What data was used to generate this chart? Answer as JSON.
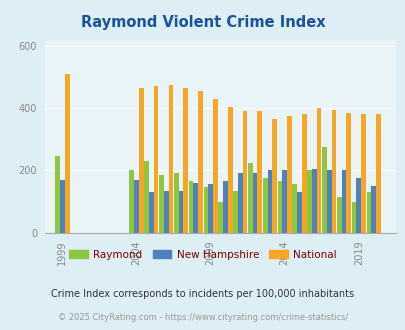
{
  "title": "Raymond Violent Crime Index",
  "title_color": "#1a52a0",
  "subtitle": "Crime Index corresponds to incidents per 100,000 inhabitants",
  "footer": "© 2025 CityRating.com - https://www.cityrating.com/crime-statistics/",
  "years": [
    1999,
    2001,
    2004,
    2005,
    2006,
    2007,
    2008,
    2009,
    2010,
    2011,
    2012,
    2013,
    2014,
    2015,
    2016,
    2017,
    2018,
    2019,
    2020
  ],
  "raymond": [
    245,
    0,
    200,
    230,
    185,
    190,
    165,
    148,
    100,
    135,
    225,
    175,
    165,
    155,
    200,
    275,
    115,
    100,
    130
  ],
  "new_hampshire": [
    170,
    0,
    170,
    130,
    135,
    135,
    160,
    155,
    165,
    190,
    190,
    200,
    200,
    130,
    205,
    200,
    200,
    175,
    150
  ],
  "national": [
    510,
    0,
    465,
    470,
    475,
    465,
    455,
    430,
    405,
    390,
    390,
    365,
    375,
    380,
    400,
    395,
    385,
    380,
    380
  ],
  "raymond_color": "#8dc63f",
  "nh_color": "#4f81bd",
  "national_color": "#f5a623",
  "bg_color": "#ddeef4",
  "plot_bg": "#ddeef4",
  "plot_inner_bg": "#e8f4f8",
  "ylim": [
    0,
    620
  ],
  "yticks": [
    0,
    200,
    400,
    600
  ],
  "xtick_years": [
    1999,
    2004,
    2009,
    2014,
    2019
  ],
  "bar_width": 0.32,
  "legend_labels": [
    "Raymond",
    "New Hampshire",
    "National"
  ]
}
